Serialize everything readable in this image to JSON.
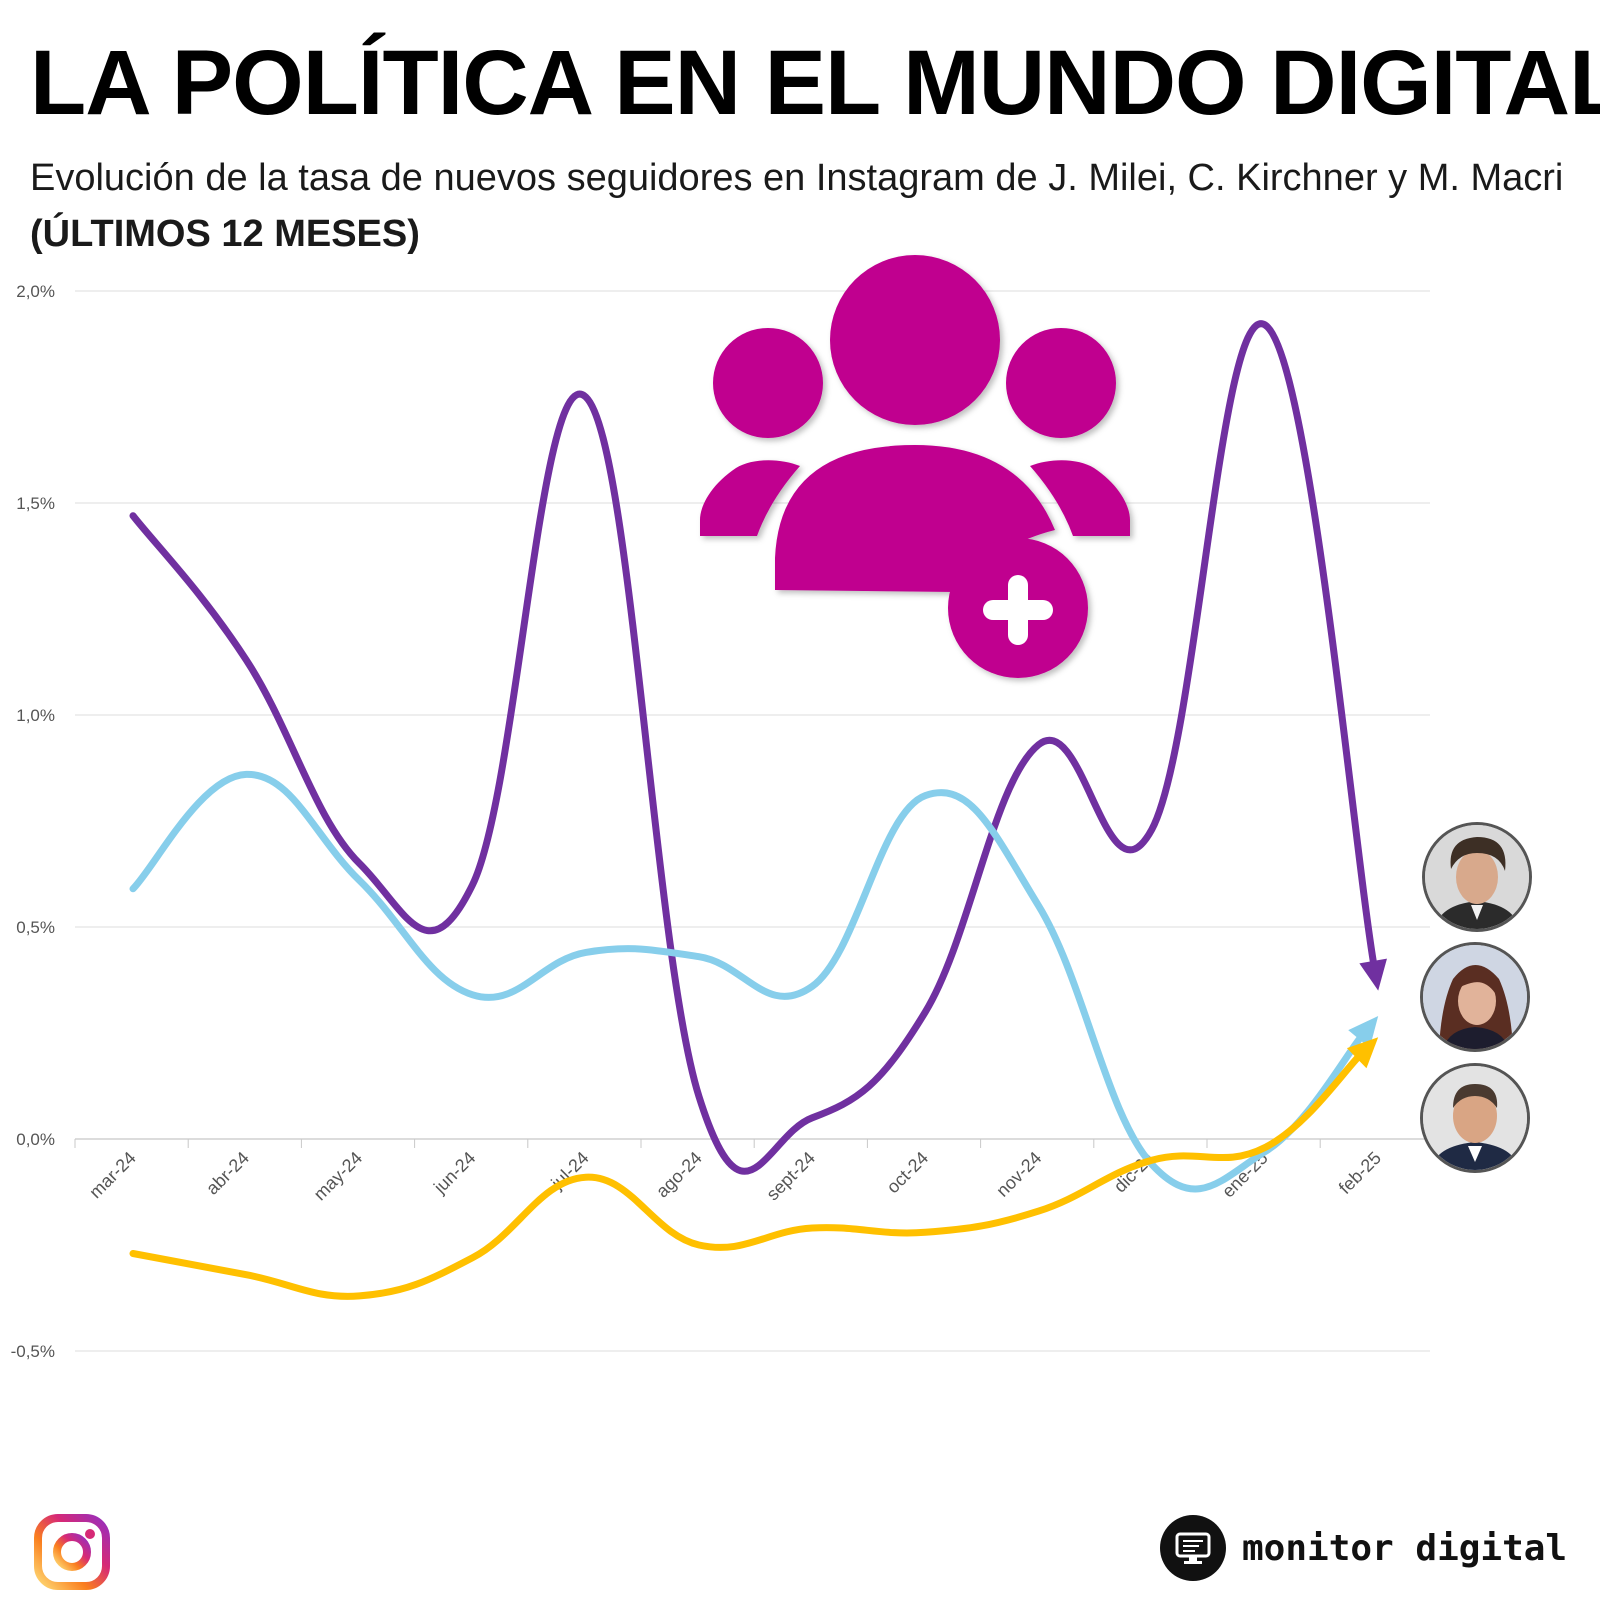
{
  "header": {
    "title": "LA POLÍTICA EN EL MUNDO DIGITAL",
    "subtitle_text": "Evolución de la tasa de nuevos seguidores en Instagram de J. Milei, C. Kirchner y M. Macri ",
    "subtitle_bold": "(ÚLTIMOS 12 MESES)"
  },
  "colors": {
    "milei": "#7030A0",
    "kirchner": "#87CEEB",
    "macri": "#FFC000",
    "icon": "#C0008F"
  },
  "chart_data": {
    "type": "line",
    "title": "",
    "xlabel": "",
    "ylabel": "",
    "ylim": [
      -0.5,
      2.0
    ],
    "y_ticks": [
      2.0,
      1.5,
      1.0,
      0.5,
      0.0,
      -0.5
    ],
    "y_tick_labels": [
      "2,0%",
      "1,5%",
      "1,0%",
      "0,5%",
      "0,0%",
      "-0,5%"
    ],
    "grid": true,
    "legend": "none",
    "categories": [
      "mar-24",
      "abr-24",
      "may-24",
      "jun-24",
      "jul-24",
      "ago-24",
      "sept-24",
      "oct-24",
      "nov-24",
      "dic-24",
      "ene-25",
      "feb-25"
    ],
    "series": [
      {
        "key": "milei",
        "values": [
          1.47,
          1.13,
          0.65,
          0.6,
          1.75,
          0.1,
          0.05,
          0.3,
          0.93,
          0.73,
          1.92,
          0.35
        ]
      },
      {
        "key": "kirchner",
        "values": [
          0.59,
          0.86,
          0.61,
          0.34,
          0.44,
          0.43,
          0.36,
          0.81,
          0.55,
          -0.06,
          -0.03,
          0.29
        ]
      },
      {
        "key": "macri",
        "values": [
          -0.27,
          -0.32,
          -0.37,
          -0.28,
          -0.09,
          -0.25,
          -0.21,
          -0.22,
          -0.17,
          -0.05,
          -0.02,
          0.24
        ]
      }
    ]
  },
  "footer": {
    "brand": "monitor digital",
    "brand_icon": "monitor-icon",
    "network_icon": "instagram-icon"
  }
}
